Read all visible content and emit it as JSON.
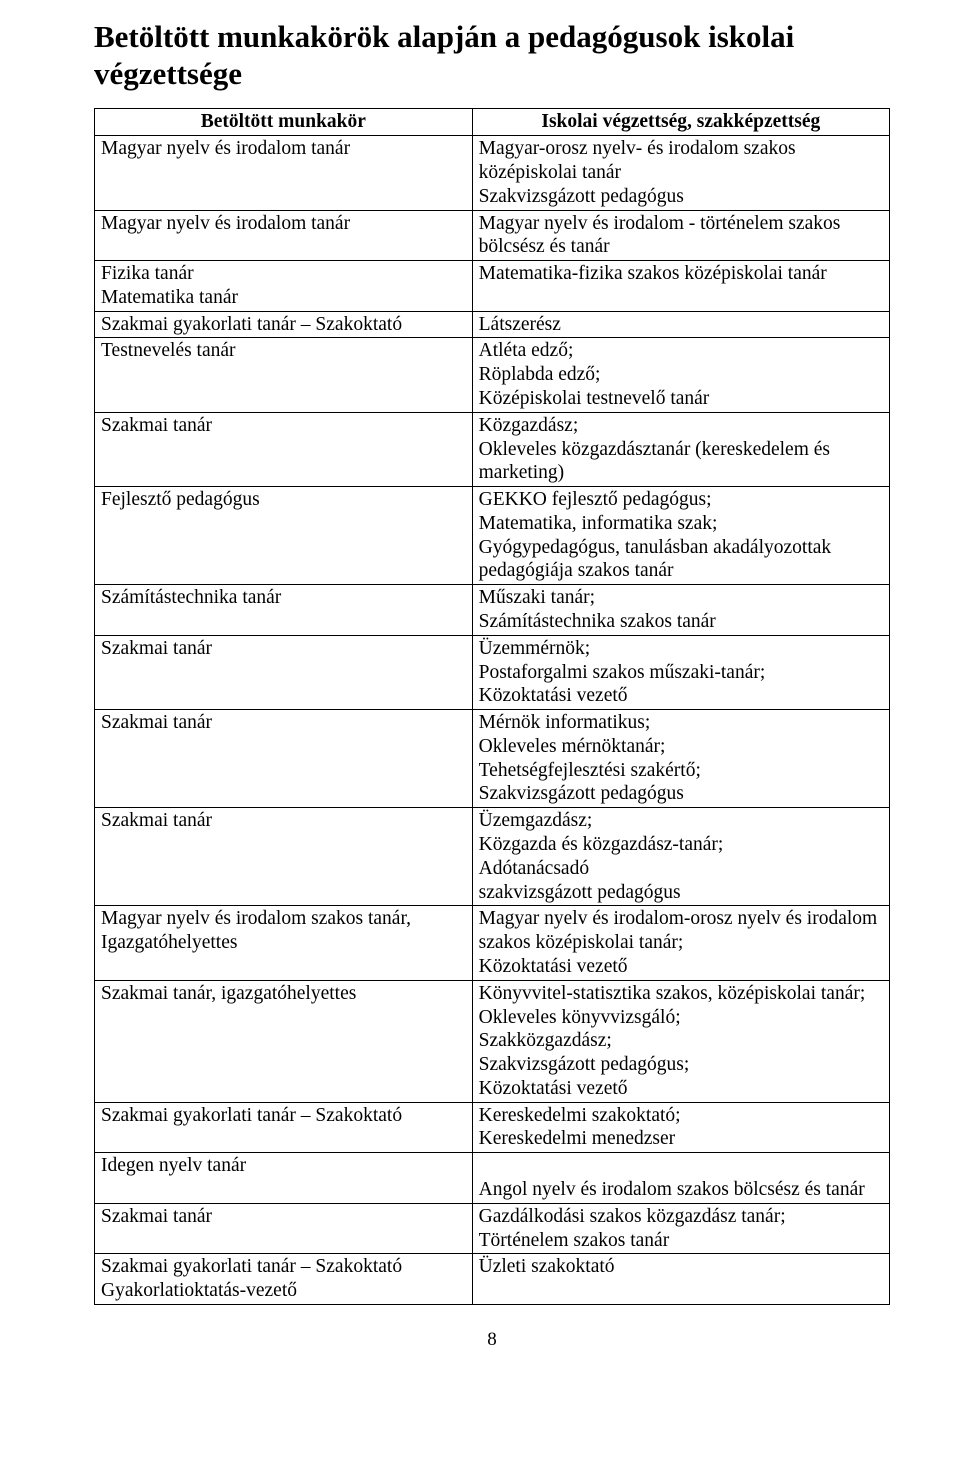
{
  "title": "Betöltött munkakörök alapján a pedagógusok iskolai végzettsége",
  "header": {
    "col1": "Betöltött munkakör",
    "col2": "Iskolai végzettség, szakképzettség"
  },
  "rows": [
    {
      "left": "Magyar nyelv és irodalom tanár",
      "right": "Magyar-orosz nyelv- és irodalom szakos középiskolai tanár\nSzakvizsgázott pedagógus"
    },
    {
      "left": "Magyar nyelv és irodalom tanár",
      "right": "Magyar nyelv és irodalom - történelem szakos bölcsész és tanár"
    },
    {
      "left": "Fizika tanár\nMatematika tanár",
      "right": "Matematika-fizika szakos középiskolai tanár"
    },
    {
      "left": "Szakmai gyakorlati tanár – Szakoktató",
      "right": "Látszerész"
    },
    {
      "left": "Testnevelés tanár",
      "right": "Atléta edző;\nRöplabda edző;\nKözépiskolai testnevelő tanár"
    },
    {
      "left": "Szakmai tanár",
      "right": "Közgazdász;\nOkleveles közgazdásztanár (kereskedelem és marketing)"
    },
    {
      "left": "Fejlesztő pedagógus",
      "right": "GEKKO fejlesztő pedagógus;\nMatematika, informatika szak;\nGyógypedagógus, tanulásban akadályozottak pedagógiája szakos tanár"
    },
    {
      "left": "Számítástechnika tanár",
      "right": "Műszaki tanár;\nSzámítástechnika szakos tanár"
    },
    {
      "left": "Szakmai tanár",
      "right": "Üzemmérnök;\nPostaforgalmi szakos műszaki-tanár;\nKözoktatási vezető"
    },
    {
      "left": "Szakmai tanár",
      "right": "Mérnök informatikus;\nOkleveles mérnöktanár;\nTehetségfejlesztési szakértő;\nSzakvizsgázott pedagógus"
    },
    {
      "left": "Szakmai tanár",
      "right": "Üzemgazdász;\nKözgazda és közgazdász-tanár;\nAdótanácsadó\nszakvizsgázott pedagógus"
    },
    {
      "left": "Magyar nyelv és irodalom szakos tanár, Igazgatóhelyettes",
      "right": "Magyar nyelv és irodalom-orosz nyelv és irodalom szakos középiskolai tanár;\nKözoktatási vezető"
    },
    {
      "left": "Szakmai tanár, igazgatóhelyettes",
      "right": "Könyvvitel-statisztika szakos, középiskolai tanár;\nOkleveles könyvvizsgáló;\nSzakközgazdász;\nSzakvizsgázott pedagógus;\nKözoktatási vezető"
    },
    {
      "left": "Szakmai gyakorlati tanár – Szakoktató",
      "right": "Kereskedelmi szakoktató;\nKereskedelmi menedzser"
    },
    {
      "left": "Idegen nyelv tanár",
      "right": "\nAngol nyelv és irodalom szakos bölcsész és tanár"
    },
    {
      "left": "Szakmai tanár",
      "right": "Gazdálkodási szakos közgazdász tanár;\nTörténelem szakos tanár"
    },
    {
      "left": "Szakmai gyakorlati tanár – Szakoktató\nGyakorlatioktatás-vezető",
      "right": "Üzleti szakoktató"
    }
  ],
  "pageNumber": "8"
}
